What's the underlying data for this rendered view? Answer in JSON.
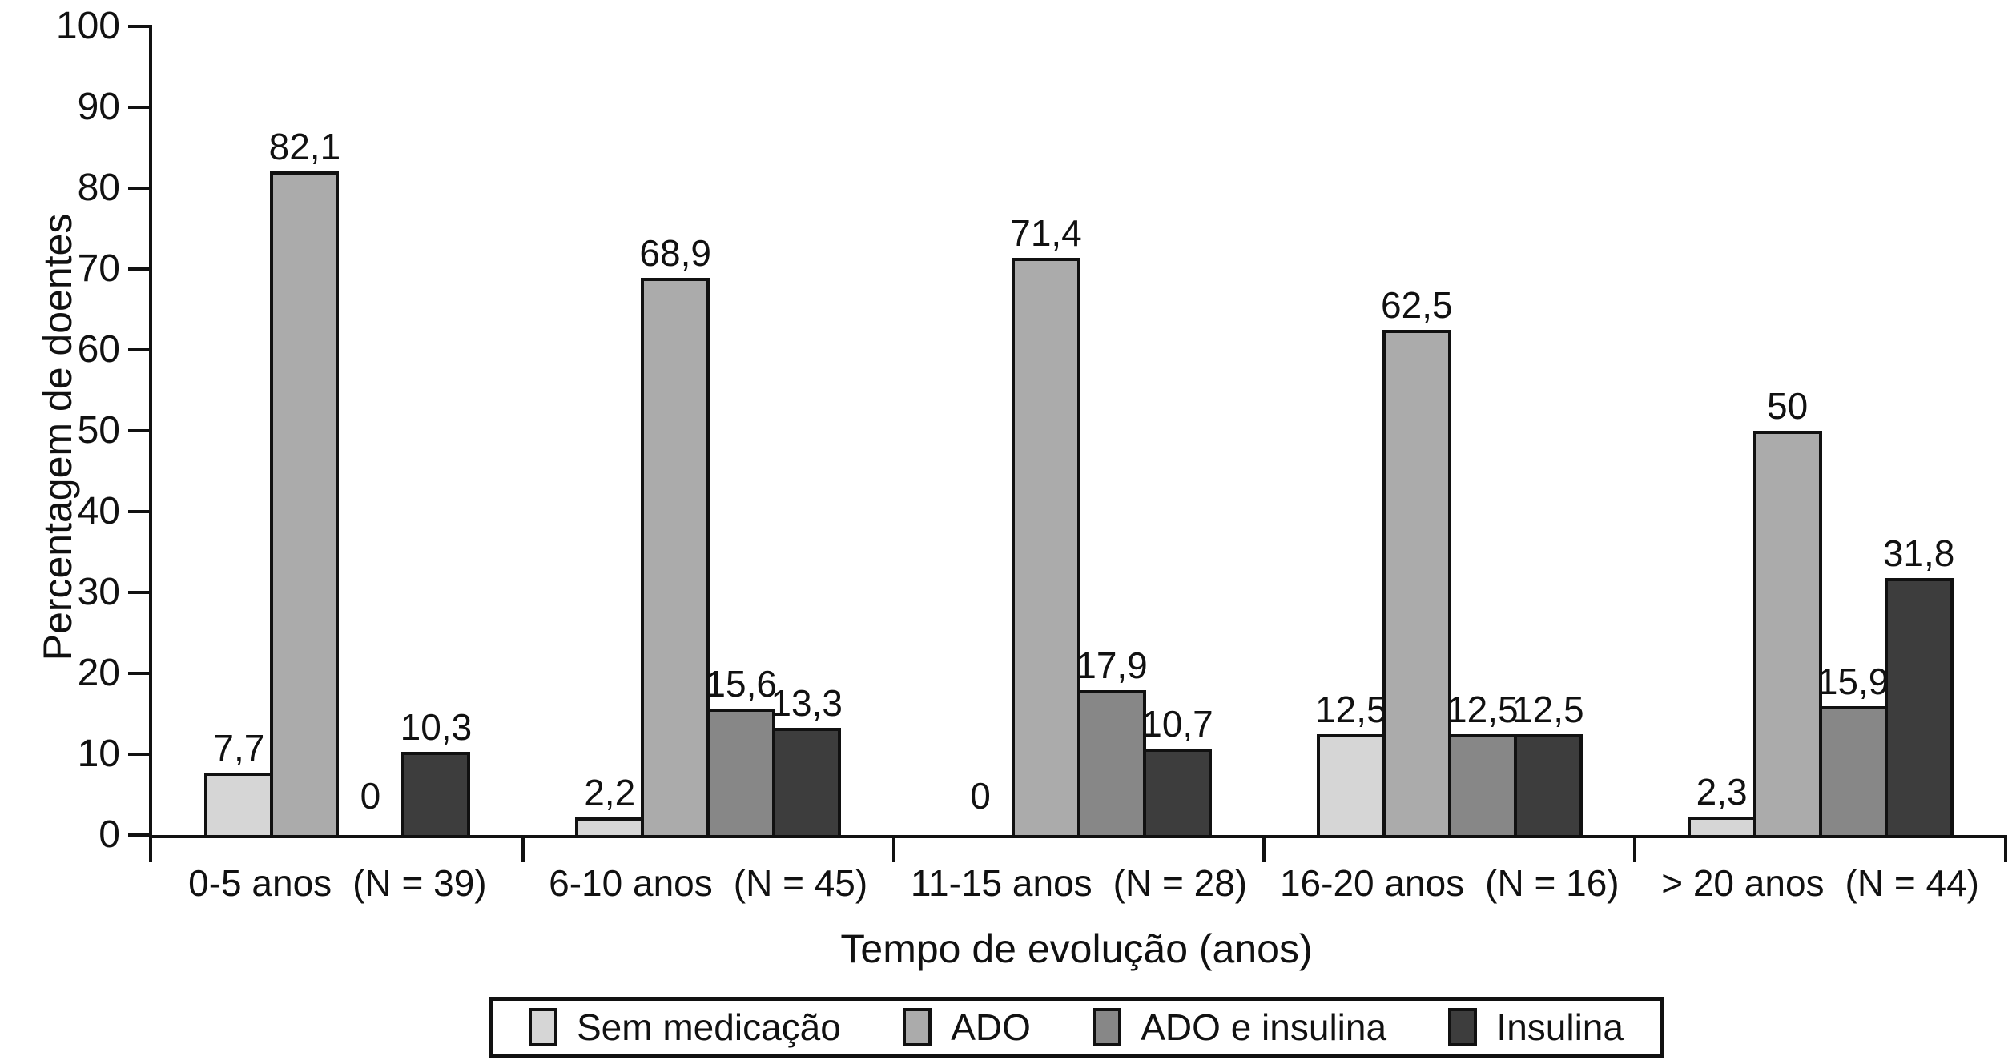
{
  "chart_data": {
    "type": "bar",
    "title": "",
    "ylabel": "Percentagem de doentes",
    "xlabel": "Tempo de evolução (anos)",
    "ylim": [
      0,
      100
    ],
    "ytick_step": 10,
    "yticks": [
      0,
      10,
      20,
      30,
      40,
      50,
      60,
      70,
      80,
      90,
      100
    ],
    "grid": false,
    "legend_position": "bottom",
    "categories": [
      "0-5 anos",
      "6-10 anos",
      "11-15 anos",
      "16-20 anos",
      "> 20 anos"
    ],
    "category_counts": [
      "(N = 39)",
      "(N = 45)",
      "(N = 28)",
      "(N = 16)",
      "(N = 44)"
    ],
    "series": [
      {
        "name": "Sem medicação",
        "color": "#d6d6d6",
        "values": [
          7.7,
          2.2,
          0,
          12.5,
          2.3
        ],
        "value_labels": [
          "7,7",
          "2,2",
          "0",
          "12,5",
          "2,3"
        ]
      },
      {
        "name": "ADO",
        "color": "#ababab",
        "values": [
          82.1,
          68.9,
          71.4,
          62.5,
          50
        ],
        "value_labels": [
          "82,1",
          "68,9",
          "71,4",
          "62,5",
          "50"
        ]
      },
      {
        "name": "ADO e insulina",
        "color": "#878787",
        "values": [
          0,
          15.6,
          17.9,
          12.5,
          15.9
        ],
        "value_labels": [
          "0",
          "15,6",
          "17,9",
          "12,5",
          "15,9"
        ]
      },
      {
        "name": "Insulina",
        "color": "#3d3d3d",
        "values": [
          10.3,
          13.3,
          10.7,
          12.5,
          31.8
        ],
        "value_labels": [
          "10,3",
          "13,3",
          "10,7",
          "12,5",
          "31,8"
        ]
      }
    ],
    "axis_color": "#111111"
  }
}
